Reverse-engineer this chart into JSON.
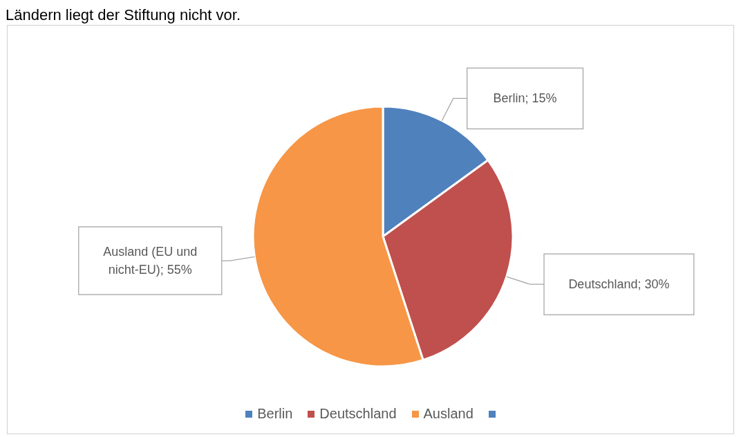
{
  "chart_data": {
    "type": "pie",
    "annotations": [
      "Ländern liegt der Stiftung nicht vor."
    ],
    "categories": [
      "Berlin",
      "Deutschland",
      "Ausland",
      null
    ],
    "values": [
      15,
      30,
      55,
      0
    ],
    "colors": [
      "#4f81bd",
      "#c0504d",
      "#f79646",
      "#4f81bd"
    ],
    "value_labels": [
      "Berlin; 15%",
      "Deutschland; 30%",
      "Ausland (EU und nicht-EU); 55%",
      null
    ],
    "legend": "bottom"
  }
}
